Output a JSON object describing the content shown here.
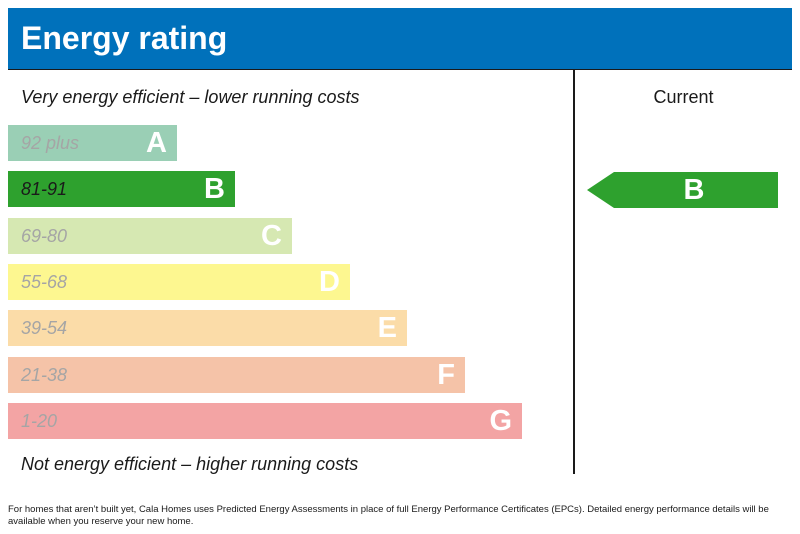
{
  "header": {
    "title": "Energy rating"
  },
  "captions": {
    "top": "Very energy efficient – lower running costs",
    "bottom": "Not energy efficient – higher running costs"
  },
  "current_column": {
    "label": "Current"
  },
  "chart_data": {
    "type": "bar",
    "title": "Energy rating",
    "bands": [
      {
        "letter": "A",
        "range": "92 plus",
        "color": "#9acfb5",
        "text_color": "#a5a5a5"
      },
      {
        "letter": "B",
        "range": "81-91",
        "color": "#2ea12e",
        "text_color": "#1a1a1a"
      },
      {
        "letter": "C",
        "range": "69-80",
        "color": "#d6e8b2",
        "text_color": "#a5a5a5"
      },
      {
        "letter": "D",
        "range": "55-68",
        "color": "#fdf790",
        "text_color": "#a5a5a5"
      },
      {
        "letter": "E",
        "range": "39-54",
        "color": "#fbdca8",
        "text_color": "#a5a5a5"
      },
      {
        "letter": "F",
        "range": "21-38",
        "color": "#f5c3a8",
        "text_color": "#a5a5a5"
      },
      {
        "letter": "G",
        "range": "1-20",
        "color": "#f3a4a4",
        "text_color": "#a5a5a5"
      }
    ],
    "current": {
      "letter": "B",
      "color": "#2ea12e"
    }
  },
  "footnote": "For homes that aren’t built yet, Cala Homes uses Predicted Energy Assessments in place of full Energy Performance Certificates (EPCs). Detailed energy performance details will be available when you reserve your new home."
}
